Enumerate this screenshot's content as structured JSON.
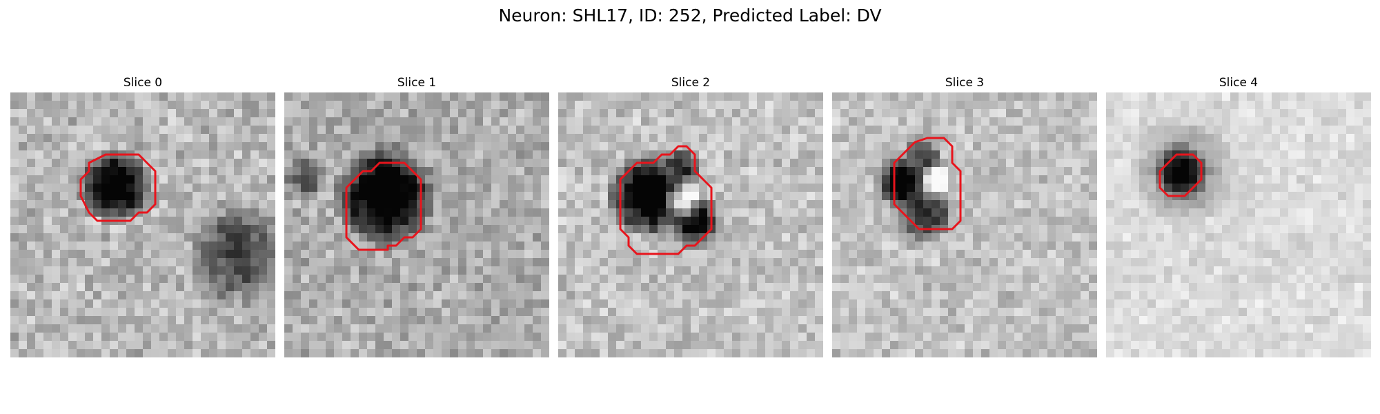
{
  "figure": {
    "title": "Neuron: SHL17, ID: 252, Predicted Label: DV"
  },
  "panels": [
    {
      "title": "Slice 0",
      "contour": [
        [
          11.5,
          7.5
        ],
        [
          15.5,
          7.5
        ],
        [
          17.5,
          9.5
        ],
        [
          17.5,
          13.5
        ],
        [
          16.5,
          14.5
        ],
        [
          15.5,
          14.5
        ],
        [
          14.5,
          15.5
        ],
        [
          10.5,
          15.5
        ],
        [
          9.5,
          14.5
        ],
        [
          8.5,
          12.5
        ],
        [
          8.5,
          10.5
        ],
        [
          9.5,
          9.5
        ],
        [
          9.5,
          8.5
        ]
      ],
      "blobs": [
        {
          "x": 12.7,
          "y": 11.3,
          "r": 4.7,
          "a": 0.85
        },
        {
          "x": 27.5,
          "y": 19.5,
          "r": 6.5,
          "a": 0.45
        }
      ],
      "base": 0.72,
      "noise": 0.26,
      "seed": 11
    },
    {
      "title": "Slice 1",
      "contour": [
        [
          8.5,
          10.5
        ],
        [
          9.5,
          9.5
        ],
        [
          10.5,
          9.5
        ],
        [
          11.5,
          8.5
        ],
        [
          14.5,
          8.5
        ],
        [
          15.5,
          9.5
        ],
        [
          16.5,
          10.5
        ],
        [
          16.5,
          16.5
        ],
        [
          15.5,
          17.5
        ],
        [
          14.5,
          17.5
        ],
        [
          13.5,
          18.5
        ],
        [
          12.5,
          18.5
        ],
        [
          12.5,
          19.0
        ],
        [
          9.0,
          19.0
        ],
        [
          7.5,
          17.5
        ],
        [
          7.5,
          11.5
        ]
      ],
      "blobs": [
        {
          "x": 12.3,
          "y": 12.5,
          "r": 6.4,
          "a": 0.85
        },
        {
          "x": 2.5,
          "y": 10.5,
          "r": 2.8,
          "a": 0.35
        }
      ],
      "base": 0.68,
      "noise": 0.26,
      "seed": 23
    },
    {
      "title": "Slice 2",
      "contour": [
        [
          14.5,
          6.5
        ],
        [
          15.5,
          6.5
        ],
        [
          16.5,
          7.5
        ],
        [
          16.5,
          9.5
        ],
        [
          17.5,
          10.5
        ],
        [
          18.5,
          11.5
        ],
        [
          18.5,
          16.5
        ],
        [
          16.5,
          18.5
        ],
        [
          15.5,
          18.5
        ],
        [
          14.5,
          19.5
        ],
        [
          9.5,
          19.5
        ],
        [
          8.5,
          18.5
        ],
        [
          8.5,
          17.5
        ],
        [
          7.5,
          16.5
        ],
        [
          7.5,
          10.5
        ],
        [
          8.5,
          9.5
        ],
        [
          9.5,
          8.5
        ],
        [
          11.5,
          8.5
        ],
        [
          12.5,
          7.5
        ],
        [
          13.5,
          7.5
        ]
      ],
      "blobs": [
        {
          "x": 11.0,
          "y": 12.5,
          "r": 5.3,
          "a": 0.9
        },
        {
          "x": 16.4,
          "y": 15.6,
          "r": 3.4,
          "a": 0.8
        },
        {
          "x": 14.8,
          "y": 9.0,
          "r": 2.6,
          "a": 0.65
        }
      ],
      "light": {
        "x": 15.0,
        "y": 13.2,
        "r": 2.4,
        "a": 0.55
      },
      "base": 0.76,
      "noise": 0.24,
      "seed": 37
    },
    {
      "title": "Slice 3",
      "contour": [
        [
          10.0,
          6.0
        ],
        [
          11.5,
          5.5
        ],
        [
          13.5,
          5.5
        ],
        [
          14.5,
          6.5
        ],
        [
          14.5,
          8.5
        ],
        [
          15.5,
          9.5
        ],
        [
          15.5,
          15.5
        ],
        [
          14.5,
          16.5
        ],
        [
          10.5,
          16.5
        ],
        [
          9.5,
          15.5
        ],
        [
          8.5,
          14.5
        ],
        [
          7.5,
          13.5
        ],
        [
          7.5,
          8.5
        ],
        [
          8.5,
          7.5
        ],
        [
          9.5,
          6.5
        ]
      ],
      "blobs": [
        {
          "x": 8.5,
          "y": 11.0,
          "r": 3.4,
          "a": 0.9
        },
        {
          "x": 11.2,
          "y": 14.5,
          "r": 3.8,
          "a": 0.6
        },
        {
          "x": 10.8,
          "y": 7.6,
          "r": 2.5,
          "a": 0.55
        }
      ],
      "light": {
        "x": 12.3,
        "y": 10.8,
        "r": 2.2,
        "a": 0.35
      },
      "base": 0.76,
      "noise": 0.22,
      "seed": 53
    },
    {
      "title": "Slice 4",
      "contour": [
        [
          7.5,
          8.5
        ],
        [
          8.5,
          7.5
        ],
        [
          10.5,
          7.5
        ],
        [
          11.5,
          8.5
        ],
        [
          11.5,
          10.5
        ],
        [
          10.5,
          11.5
        ],
        [
          9.5,
          12.5
        ],
        [
          7.5,
          12.5
        ],
        [
          6.5,
          11.5
        ],
        [
          6.5,
          9.5
        ]
      ],
      "blobs": [
        {
          "x": 9.2,
          "y": 9.6,
          "r": 3.9,
          "a": 0.92
        }
      ],
      "halo": {
        "x": 9.2,
        "y": 9.6,
        "r": 6.8,
        "a": 0.3
      },
      "base": 0.86,
      "noise": 0.12,
      "seed": 71
    }
  ],
  "style": {
    "contour_color": "#e8141c"
  }
}
